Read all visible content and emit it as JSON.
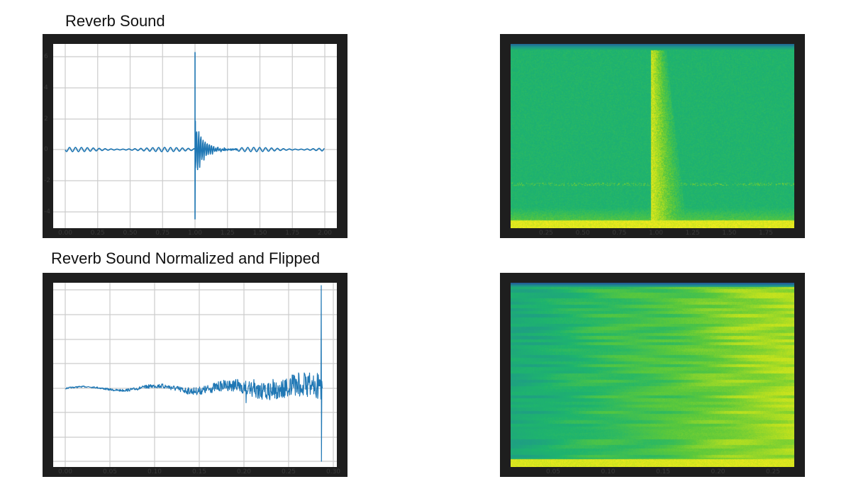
{
  "titles": {
    "top": "Reverb Sound",
    "bottom": "Reverb Sound Normalized and Flipped"
  },
  "colors": {
    "frame": "#1e1e1e",
    "line": "#1f77b4",
    "grid": "#cccccc",
    "background": "#ffffff"
  },
  "chart_data": [
    {
      "id": "reverb-waveform",
      "type": "line",
      "title": "Reverb Sound",
      "xlabel": "",
      "ylabel": "",
      "x_ticks": [
        "0.00",
        "0.25",
        "0.50",
        "0.75",
        "1.00",
        "1.25",
        "1.50",
        "1.75",
        "2.00"
      ],
      "y_ticks": [
        "6",
        "4",
        "2",
        "0",
        "-2",
        "-4"
      ],
      "xlim": [
        0.0,
        2.0
      ],
      "ylim": [
        -5,
        6.5
      ],
      "grid": true,
      "description": "Low-amplitude sinusoidal background (~±0.2) with a sharp impulse at x≈1.0 reaching ≈6.2 and ≈-4.5, followed by exponentially decaying ringing until ≈1.3.",
      "series": [
        {
          "name": "signal",
          "x": [
            0.0,
            0.5,
            0.99,
            1.0,
            1.01,
            1.05,
            1.1,
            1.2,
            1.3,
            1.5,
            2.0
          ],
          "y": [
            0.2,
            0.2,
            0.2,
            6.2,
            -4.5,
            1.5,
            1.0,
            0.5,
            0.2,
            0.2,
            0.1
          ]
        }
      ]
    },
    {
      "id": "reverb-spectrogram",
      "type": "heatmap",
      "title": "",
      "x_ticks": [
        "0.25",
        "0.50",
        "0.75",
        "1.00",
        "1.25",
        "1.50",
        "1.75"
      ],
      "colormap": "viridis",
      "description": "Mostly uniform green background; bright yellow vertical band starting at t≈1.0 fading by t≈1.25; bright yellow strip at lowest frequencies; dark blue strip at top."
    },
    {
      "id": "flipped-waveform",
      "type": "line",
      "title": "Reverb Sound Normalized and Flipped",
      "xlabel": "",
      "ylabel": "",
      "x_ticks": [
        "0.00",
        "0.05",
        "0.10",
        "0.15",
        "0.20",
        "0.25",
        "0.30"
      ],
      "xlim": [
        0.0,
        0.3
      ],
      "grid": true,
      "description": "Noise envelope that grows with time from near 0 at x=0 to large amplitude near x≈0.29, ending with a sharp spike (max ≈ top of axis, min ≈ bottom of axis).",
      "series": [
        {
          "name": "signal",
          "x": [
            0.0,
            0.05,
            0.1,
            0.15,
            0.2,
            0.25,
            0.285,
            0.29
          ],
          "y": [
            0.0,
            0.05,
            0.1,
            0.15,
            0.3,
            0.5,
            0.8,
            4.0
          ]
        }
      ]
    },
    {
      "id": "flipped-spectrogram",
      "type": "heatmap",
      "title": "",
      "x_ticks": [
        "0.05",
        "0.10",
        "0.15",
        "0.20",
        "0.25"
      ],
      "colormap": "viridis",
      "description": "Horizontal streaky green texture that brightens toward yellow from left to right; dark blue strip at top, yellow strip at bottom."
    }
  ]
}
